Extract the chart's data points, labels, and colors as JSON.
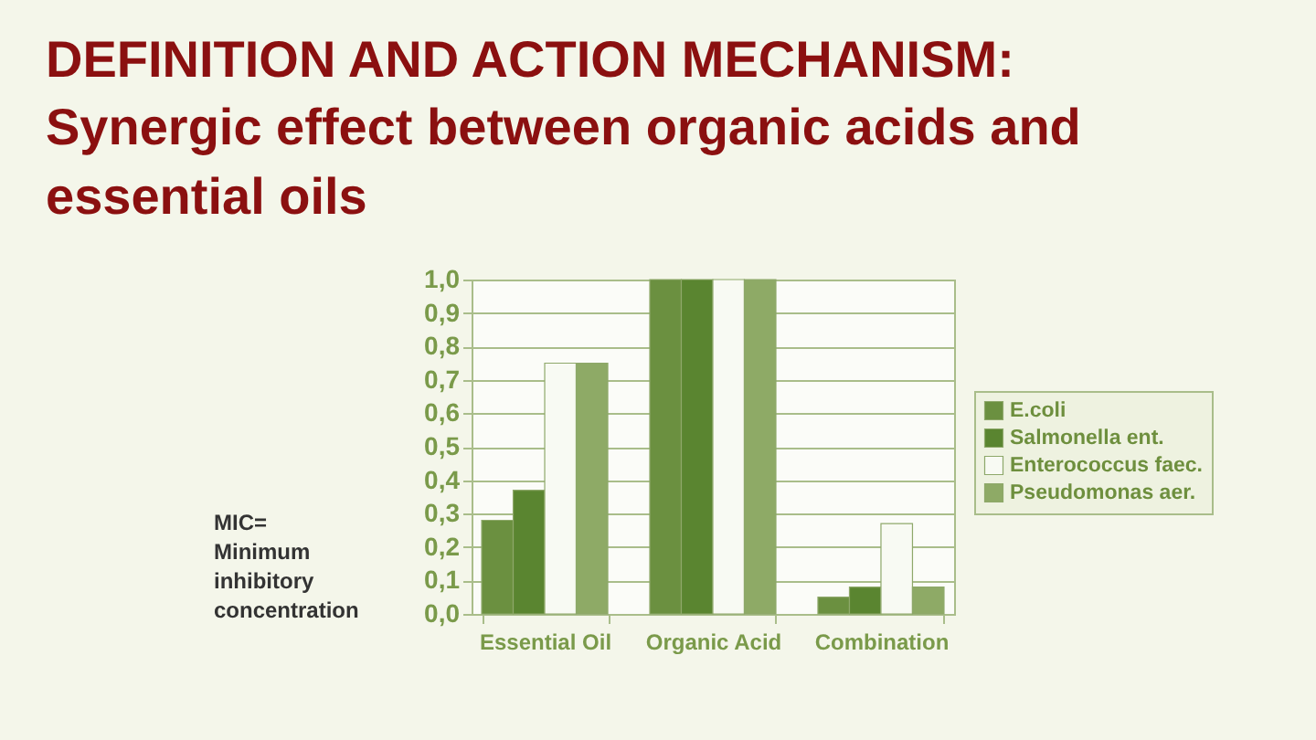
{
  "chart_data": {
    "type": "bar",
    "title": "DEFINITION AND ACTION MECHANISM:",
    "subtitle": "Synergic effect between organic acids and essential oils",
    "categories": [
      "Essential Oil",
      "Organic Acid",
      "Combination"
    ],
    "series": [
      {
        "name": "E.coli",
        "color": "#6b9040",
        "values": [
          0.28,
          1.0,
          0.05
        ]
      },
      {
        "name": "Salmonella ent.",
        "color": "#5a8530",
        "values": [
          0.37,
          1.0,
          0.08
        ]
      },
      {
        "name": "Enterococcus faec.",
        "color": "#f8faf3",
        "values": [
          0.75,
          1.0,
          0.27
        ]
      },
      {
        "name": "Pseudomonas aer.",
        "color": "#8eaa66",
        "values": [
          0.75,
          1.0,
          0.08
        ]
      }
    ],
    "ylim": [
      0,
      1
    ],
    "yticks": [
      {
        "value": 0,
        "label": "0,0"
      },
      {
        "value": 0.1,
        "label": "0,1"
      },
      {
        "value": 0.2,
        "label": "0,2"
      },
      {
        "value": 0.3,
        "label": "0,3"
      },
      {
        "value": 0.4,
        "label": "0,4"
      },
      {
        "value": 0.5,
        "label": "0,5"
      },
      {
        "value": 0.6,
        "label": "0,6"
      },
      {
        "value": 0.7,
        "label": "0,7"
      },
      {
        "value": 0.8,
        "label": "0,8"
      },
      {
        "value": 0.9,
        "label": "0,9"
      },
      {
        "value": 1,
        "label": "1,0"
      }
    ],
    "grid": "y",
    "legend": "right",
    "annotations": [
      "MIC= Minimum inhibitory concentration"
    ]
  }
}
